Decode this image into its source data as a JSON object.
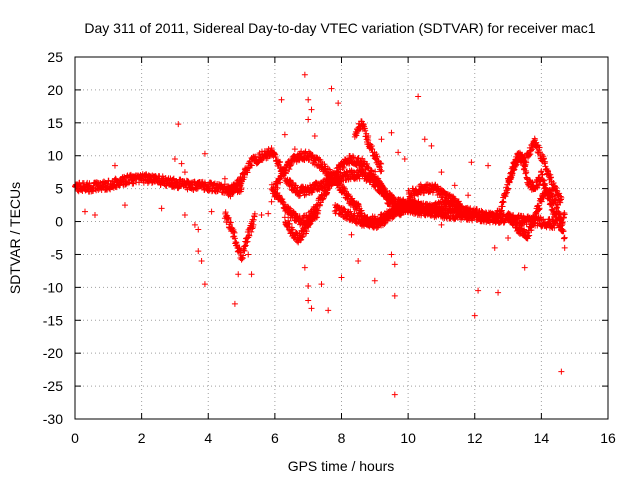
{
  "chart_data": {
    "type": "scatter",
    "title": "Day 311 of 2011, Sidereal Day-to-day VTEC variation (SDTVAR) for receiver mac1",
    "xlabel": "GPS time / hours",
    "ylabel": "SDTVAR / TECUs",
    "xlim": [
      0,
      16
    ],
    "ylim": [
      -30,
      25
    ],
    "xticks": [
      0,
      2,
      4,
      6,
      8,
      10,
      12,
      14,
      16
    ],
    "yticks": [
      -30,
      -25,
      -20,
      -15,
      -10,
      -5,
      0,
      5,
      10,
      15,
      20,
      25
    ],
    "grid": true,
    "marker": "+",
    "series": [
      {
        "name": "SDTVAR",
        "color": "#ff0000",
        "tracks": [
          {
            "name": "main-track",
            "t0": 0.0,
            "t1": 5.0,
            "knots": [
              [
                0.0,
                5.3
              ],
              [
                0.5,
                5.2
              ],
              [
                1.0,
                5.5
              ],
              [
                1.5,
                6.3
              ],
              [
                2.0,
                6.6
              ],
              [
                2.5,
                6.3
              ],
              [
                3.0,
                5.8
              ],
              [
                3.5,
                5.5
              ],
              [
                4.0,
                5.3
              ],
              [
                4.5,
                5.0
              ],
              [
                5.0,
                5.0
              ]
            ]
          },
          {
            "name": "track-a",
            "t0": 4.6,
            "t1": 10.2,
            "knots": [
              [
                4.6,
                4.0
              ],
              [
                5.0,
                6.5
              ],
              [
                5.3,
                9.0
              ],
              [
                5.6,
                10.0
              ],
              [
                5.9,
                10.5
              ],
              [
                6.1,
                9.0
              ],
              [
                6.4,
                6.0
              ],
              [
                6.7,
                4.5
              ],
              [
                7.0,
                4.8
              ],
              [
                7.4,
                5.6
              ],
              [
                7.8,
                6.3
              ],
              [
                8.2,
                7.0
              ],
              [
                8.5,
                7.2
              ],
              [
                8.8,
                6.8
              ],
              [
                9.2,
                4.8
              ],
              [
                9.6,
                3.0
              ],
              [
                10.2,
                2.2
              ]
            ]
          },
          {
            "name": "track-b",
            "t0": 5.9,
            "t1": 9.8,
            "knots": [
              [
                5.9,
                5.0
              ],
              [
                6.2,
                3.0
              ],
              [
                6.5,
                1.0
              ],
              [
                6.8,
                0.0
              ],
              [
                7.1,
                1.0
              ],
              [
                7.4,
                3.5
              ],
              [
                7.7,
                6.0
              ],
              [
                7.9,
                8.0
              ],
              [
                8.2,
                9.5
              ],
              [
                8.6,
                9.0
              ],
              [
                9.0,
                7.0
              ],
              [
                9.3,
                4.0
              ],
              [
                9.6,
                2.0
              ],
              [
                9.8,
                1.5
              ]
            ]
          },
          {
            "name": "track-c",
            "t0": 6.0,
            "t1": 8.6,
            "knots": [
              [
                6.0,
                5.0
              ],
              [
                6.3,
                8.0
              ],
              [
                6.7,
                10.0
              ],
              [
                7.0,
                10.0
              ],
              [
                7.3,
                9.0
              ],
              [
                7.7,
                7.0
              ],
              [
                8.0,
                5.0
              ],
              [
                8.3,
                3.0
              ],
              [
                8.6,
                1.5
              ]
            ]
          },
          {
            "name": "track-d",
            "t0": 7.8,
            "t1": 10.4,
            "knots": [
              [
                7.8,
                2.0
              ],
              [
                8.2,
                1.0
              ],
              [
                8.6,
                0.0
              ],
              [
                9.0,
                0.2
              ],
              [
                9.4,
                1.0
              ],
              [
                9.8,
                2.0
              ],
              [
                10.4,
                2.2
              ]
            ]
          },
          {
            "name": "track-e",
            "t0": 8.6,
            "t1": 12.6,
            "knots": [
              [
                8.6,
                0.5
              ],
              [
                9.0,
                -0.5
              ],
              [
                9.4,
                0.5
              ],
              [
                9.8,
                2.5
              ],
              [
                10.2,
                2.5
              ],
              [
                10.6,
                2.0
              ],
              [
                11.0,
                2.5
              ],
              [
                11.4,
                2.0
              ],
              [
                11.8,
                1.5
              ],
              [
                12.2,
                1.0
              ],
              [
                12.6,
                0.5
              ]
            ]
          },
          {
            "name": "track-f",
            "t0": 10.0,
            "t1": 11.6,
            "knots": [
              [
                10.0,
                4.0
              ],
              [
                10.4,
                5.0
              ],
              [
                10.8,
                5.0
              ],
              [
                11.2,
                3.5
              ],
              [
                11.6,
                2.5
              ]
            ]
          },
          {
            "name": "track-g",
            "t0": 10.0,
            "t1": 14.4,
            "knots": [
              [
                10.0,
                2.0
              ],
              [
                10.5,
                1.5
              ],
              [
                11.0,
                1.2
              ],
              [
                11.5,
                1.0
              ],
              [
                12.0,
                0.8
              ],
              [
                12.5,
                0.5
              ],
              [
                13.0,
                0.5
              ],
              [
                13.5,
                0.2
              ],
              [
                14.0,
                0.0
              ],
              [
                14.4,
                -0.5
              ]
            ]
          },
          {
            "name": "track-h",
            "t0": 12.6,
            "t1": 14.7,
            "knots": [
              [
                12.6,
                0.5
              ],
              [
                12.8,
                2.0
              ],
              [
                13.0,
                5.5
              ],
              [
                13.2,
                9.0
              ],
              [
                13.4,
                10.0
              ],
              [
                13.6,
                6.0
              ],
              [
                13.8,
                5.0
              ],
              [
                14.0,
                7.0
              ],
              [
                14.2,
                4.0
              ],
              [
                14.4,
                1.0
              ],
              [
                14.6,
                -1.0
              ],
              [
                14.7,
                1.5
              ]
            ]
          },
          {
            "name": "track-i",
            "t0": 13.0,
            "t1": 14.7,
            "knots": [
              [
                13.0,
                1.0
              ],
              [
                13.3,
                -1.0
              ],
              [
                13.6,
                -2.0
              ],
              [
                13.9,
                2.0
              ],
              [
                14.1,
                4.5
              ],
              [
                14.3,
                4.0
              ],
              [
                14.5,
                2.0
              ],
              [
                14.7,
                -2.5
              ]
            ]
          },
          {
            "name": "track-j",
            "t0": 13.0,
            "t1": 14.6,
            "knots": [
              [
                13.0,
                6.0
              ],
              [
                13.3,
                10.0
              ],
              [
                13.5,
                9.0
              ],
              [
                13.8,
                12.0
              ],
              [
                14.0,
                10.0
              ],
              [
                14.3,
                6.0
              ],
              [
                14.6,
                3.0
              ]
            ]
          },
          {
            "name": "track-k",
            "t0": 8.4,
            "t1": 9.2,
            "knots": [
              [
                8.4,
                13.0
              ],
              [
                8.6,
                15.0
              ],
              [
                8.8,
                12.0
              ],
              [
                9.0,
                10.0
              ],
              [
                9.2,
                8.0
              ]
            ]
          },
          {
            "name": "track-l",
            "t0": 4.5,
            "t1": 5.4,
            "knots": [
              [
                4.5,
                1.0
              ],
              [
                4.7,
                -1.0
              ],
              [
                4.9,
                -4.0
              ],
              [
                5.0,
                -5.5
              ],
              [
                5.2,
                -2.0
              ],
              [
                5.4,
                0.5
              ]
            ]
          },
          {
            "name": "track-m",
            "t0": 6.3,
            "t1": 7.3,
            "knots": [
              [
                6.3,
                0.5
              ],
              [
                6.5,
                -1.5
              ],
              [
                6.7,
                -2.5
              ],
              [
                6.9,
                -1.5
              ],
              [
                7.1,
                0.5
              ],
              [
                7.3,
                1.5
              ]
            ]
          }
        ],
        "outliers": [
          [
            3.1,
            14.8
          ],
          [
            3.0,
            9.5
          ],
          [
            3.2,
            8.8
          ],
          [
            3.3,
            7.5
          ],
          [
            3.6,
            -0.5
          ],
          [
            3.7,
            -1.2
          ],
          [
            3.7,
            -4.5
          ],
          [
            3.8,
            -6.0
          ],
          [
            3.9,
            -9.5
          ],
          [
            3.9,
            10.3
          ],
          [
            4.8,
            -12.5
          ],
          [
            4.9,
            -8.0
          ],
          [
            5.2,
            -5.0
          ],
          [
            5.3,
            -8.0
          ],
          [
            5.6,
            1.0
          ],
          [
            5.8,
            1.2
          ],
          [
            6.2,
            18.5
          ],
          [
            6.3,
            13.2
          ],
          [
            6.6,
            11.0
          ],
          [
            6.9,
            22.3
          ],
          [
            7.0,
            18.5
          ],
          [
            7.1,
            17.0
          ],
          [
            7.0,
            15.5
          ],
          [
            7.2,
            13.0
          ],
          [
            7.0,
            -9.8
          ],
          [
            7.0,
            -12.0
          ],
          [
            7.1,
            -13.2
          ],
          [
            6.9,
            -7.0
          ],
          [
            7.4,
            -9.5
          ],
          [
            7.6,
            -13.5
          ],
          [
            7.7,
            20.2
          ],
          [
            7.9,
            18.0
          ],
          [
            8.0,
            -8.5
          ],
          [
            8.3,
            -2.0
          ],
          [
            8.5,
            -6.0
          ],
          [
            8.8,
            13.0
          ],
          [
            9.0,
            -9.0
          ],
          [
            9.2,
            12.5
          ],
          [
            9.5,
            -5.0
          ],
          [
            9.6,
            -6.5
          ],
          [
            9.6,
            -11.3
          ],
          [
            9.6,
            -26.3
          ],
          [
            9.5,
            13.5
          ],
          [
            9.7,
            10.5
          ],
          [
            9.9,
            9.5
          ],
          [
            10.3,
            19.0
          ],
          [
            10.5,
            12.5
          ],
          [
            10.7,
            11.5
          ],
          [
            11.0,
            7.5
          ],
          [
            11.0,
            -0.5
          ],
          [
            11.4,
            5.5
          ],
          [
            11.8,
            4.0
          ],
          [
            11.9,
            9.0
          ],
          [
            12.0,
            -14.3
          ],
          [
            12.1,
            -10.5
          ],
          [
            12.4,
            8.5
          ],
          [
            12.6,
            -4.0
          ],
          [
            12.7,
            -10.8
          ],
          [
            13.0,
            -2.5
          ],
          [
            13.3,
            9.5
          ],
          [
            13.5,
            -7.0
          ],
          [
            14.6,
            -22.8
          ],
          [
            14.7,
            -4.0
          ],
          [
            0.3,
            1.5
          ],
          [
            0.6,
            1.0
          ],
          [
            1.2,
            8.5
          ],
          [
            1.5,
            2.5
          ],
          [
            2.6,
            2.0
          ],
          [
            3.3,
            1.0
          ],
          [
            4.1,
            1.5
          ],
          [
            4.5,
            6.5
          ],
          [
            5.9,
            3.0
          ]
        ]
      }
    ]
  }
}
